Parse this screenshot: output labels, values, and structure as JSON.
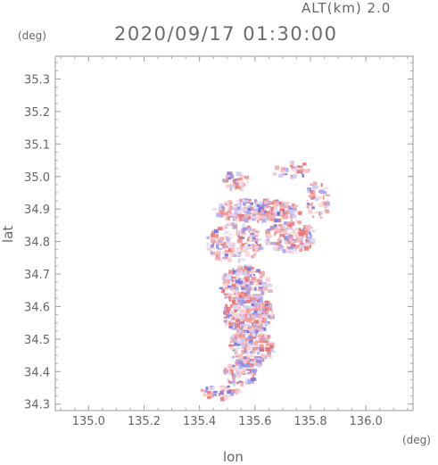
{
  "header": {
    "altitude_label": "ALT(km) 2.0",
    "timestamp": "2020/09/17 01:30:00"
  },
  "chart_data": {
    "type": "scatter",
    "title": "2020/09/17 01:30:00",
    "xlabel": "lon",
    "ylabel": "lat",
    "x_unit": "(deg)",
    "y_unit": "(deg)",
    "xlim": [
      134.88,
      136.17
    ],
    "ylim": [
      34.28,
      35.37
    ],
    "x_ticks": [
      {
        "value": 135.0,
        "label": "135.0"
      },
      {
        "value": 135.2,
        "label": "135.2"
      },
      {
        "value": 135.4,
        "label": "135.4"
      },
      {
        "value": 135.6,
        "label": "135.6"
      },
      {
        "value": 135.8,
        "label": "135.8"
      },
      {
        "value": 136.0,
        "label": "136.0"
      }
    ],
    "y_ticks": [
      {
        "value": 34.3,
        "label": "34.3"
      },
      {
        "value": 34.4,
        "label": "34.4"
      },
      {
        "value": 34.5,
        "label": "34.5"
      },
      {
        "value": 34.6,
        "label": "34.6"
      },
      {
        "value": 34.7,
        "label": "34.7"
      },
      {
        "value": 34.8,
        "label": "34.8"
      },
      {
        "value": 34.9,
        "label": "34.9"
      },
      {
        "value": 35.0,
        "label": "35.0"
      },
      {
        "value": 35.1,
        "label": "35.1"
      },
      {
        "value": 35.2,
        "label": "35.2"
      },
      {
        "value": 35.3,
        "label": "35.3"
      }
    ],
    "grid": false,
    "colors": {
      "positive": "#f08080",
      "negative": "#8080f0",
      "axis": "#999999"
    },
    "clusters": [
      {
        "lon": 135.6,
        "lat": 34.9,
        "rlon": 0.16,
        "rlat": 0.035,
        "n": 260
      },
      {
        "lon": 135.72,
        "lat": 34.82,
        "rlon": 0.09,
        "rlat": 0.05,
        "n": 160
      },
      {
        "lon": 135.52,
        "lat": 34.8,
        "rlon": 0.1,
        "rlat": 0.06,
        "n": 150
      },
      {
        "lon": 135.56,
        "lat": 34.67,
        "rlon": 0.09,
        "rlat": 0.06,
        "n": 220
      },
      {
        "lon": 135.57,
        "lat": 34.58,
        "rlon": 0.09,
        "rlat": 0.06,
        "n": 260
      },
      {
        "lon": 135.58,
        "lat": 34.48,
        "rlon": 0.08,
        "rlat": 0.06,
        "n": 200
      },
      {
        "lon": 135.54,
        "lat": 34.4,
        "rlon": 0.06,
        "rlat": 0.035,
        "n": 80
      },
      {
        "lon": 135.47,
        "lat": 34.34,
        "rlon": 0.07,
        "rlat": 0.02,
        "n": 35
      },
      {
        "lon": 135.52,
        "lat": 34.99,
        "rlon": 0.05,
        "rlat": 0.03,
        "n": 40
      },
      {
        "lon": 135.82,
        "lat": 34.93,
        "rlon": 0.04,
        "rlat": 0.06,
        "n": 50
      },
      {
        "lon": 135.73,
        "lat": 35.02,
        "rlon": 0.07,
        "rlat": 0.03,
        "n": 30
      }
    ]
  }
}
